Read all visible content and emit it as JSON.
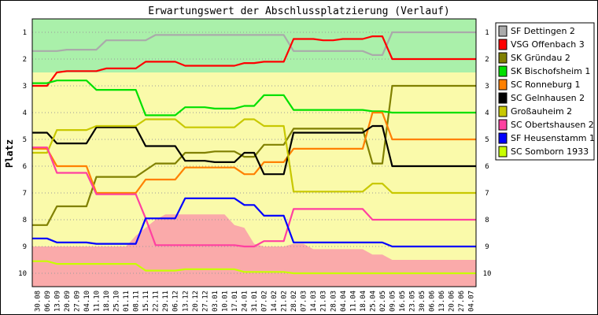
{
  "chart_data": {
    "type": "line",
    "title": "Erwartungswert der Abschlussplatzierung (Verlauf)",
    "ylabel": "Platz",
    "xlabel": "",
    "ylim": [
      10.5,
      0.5
    ],
    "y_ticks": [
      "1",
      "2",
      "3",
      "4",
      "5",
      "6",
      "7",
      "8",
      "9",
      "10"
    ],
    "x": [
      "30.08",
      "06.09",
      "13.09",
      "20.09",
      "27.09",
      "04.10",
      "11.10",
      "18.10",
      "25.10",
      "01.11",
      "08.11",
      "15.11",
      "22.11",
      "29.11",
      "06.12",
      "13.12",
      "20.12",
      "27.12",
      "03.01",
      "10.01",
      "17.01",
      "24.01",
      "31.01",
      "07.02",
      "14.02",
      "21.02",
      "28.02",
      "07.03",
      "14.03",
      "21.03",
      "28.03",
      "04.04",
      "11.04",
      "18.04",
      "25.04",
      "02.05",
      "09.05",
      "16.05",
      "23.05",
      "30.05",
      "06.06",
      "13.06",
      "20.06",
      "27.06",
      "04.07"
    ],
    "zones": [
      {
        "from": 0.5,
        "to": 2.5,
        "color": "#aaf0aa"
      },
      {
        "from": 2.5,
        "to": 9.5,
        "color": "#fafaaa"
      },
      {
        "from": 9.5,
        "to": 10.5,
        "color": "#faaaaa"
      }
    ],
    "shaded_area": {
      "color": "#faaaaa",
      "upper": [
        9.0,
        9.0,
        9.0,
        9.0,
        9.0,
        9.0,
        9.0,
        9.0,
        9.0,
        9.0,
        8.6,
        8.3,
        8.0,
        7.8,
        7.8,
        7.8,
        7.8,
        7.8,
        7.8,
        7.8,
        8.2,
        8.3,
        8.9,
        9.0,
        9.0,
        9.0,
        8.9,
        8.9,
        9.1,
        9.1,
        9.1,
        9.1,
        9.1,
        9.1,
        9.3,
        9.3,
        9.5,
        9.5,
        9.5,
        9.5,
        9.5,
        9.5,
        9.5,
        9.5,
        9.5
      ]
    },
    "series": [
      {
        "name": "SF Dettingen 2",
        "color": "#aaaaaa",
        "values": [
          1.7,
          1.7,
          1.7,
          1.65,
          1.65,
          1.65,
          1.65,
          1.3,
          1.3,
          1.3,
          1.3,
          1.3,
          1.1,
          1.1,
          1.1,
          1.1,
          1.1,
          1.1,
          1.1,
          1.1,
          1.1,
          1.1,
          1.1,
          1.1,
          1.1,
          1.1,
          1.7,
          1.7,
          1.7,
          1.7,
          1.7,
          1.7,
          1.7,
          1.7,
          1.85,
          1.85,
          1.0,
          1.0,
          1.0,
          1.0,
          1.0,
          1.0,
          1.0,
          1.0,
          1.0
        ]
      },
      {
        "name": "VSG Offenbach 3",
        "color": "#ff0000",
        "values": [
          3.0,
          3.0,
          2.5,
          2.45,
          2.45,
          2.45,
          2.45,
          2.35,
          2.35,
          2.35,
          2.35,
          2.1,
          2.1,
          2.1,
          2.1,
          2.25,
          2.25,
          2.25,
          2.25,
          2.25,
          2.25,
          2.15,
          2.15,
          2.1,
          2.1,
          2.1,
          1.25,
          1.25,
          1.25,
          1.3,
          1.3,
          1.25,
          1.25,
          1.25,
          1.15,
          1.15,
          2.0,
          2.0,
          2.0,
          2.0,
          2.0,
          2.0,
          2.0,
          2.0,
          2.0
        ]
      },
      {
        "name": "SK Gründau 2",
        "color": "#808000",
        "values": [
          8.2,
          8.2,
          7.5,
          7.5,
          7.5,
          7.5,
          6.4,
          6.4,
          6.4,
          6.4,
          6.4,
          6.15,
          5.9,
          5.9,
          5.9,
          5.5,
          5.5,
          5.5,
          5.45,
          5.45,
          5.45,
          5.65,
          5.65,
          5.2,
          5.2,
          5.2,
          4.6,
          4.6,
          4.6,
          4.6,
          4.6,
          4.6,
          4.6,
          4.6,
          5.9,
          5.9,
          3.0,
          3.0,
          3.0,
          3.0,
          3.0,
          3.0,
          3.0,
          3.0,
          3.0
        ]
      },
      {
        "name": "SK Bischofsheim 1",
        "color": "#00e000",
        "values": [
          2.9,
          2.9,
          2.8,
          2.8,
          2.8,
          2.8,
          3.15,
          3.15,
          3.15,
          3.15,
          3.15,
          4.1,
          4.1,
          4.1,
          4.1,
          3.8,
          3.8,
          3.8,
          3.85,
          3.85,
          3.85,
          3.75,
          3.75,
          3.35,
          3.35,
          3.35,
          3.9,
          3.9,
          3.9,
          3.9,
          3.9,
          3.9,
          3.9,
          3.9,
          3.95,
          3.95,
          4.0,
          4.0,
          4.0,
          4.0,
          4.0,
          4.0,
          4.0,
          4.0,
          4.0
        ]
      },
      {
        "name": "SC Ronneburg 1",
        "color": "#ff8000",
        "values": [
          5.35,
          5.35,
          6.0,
          6.0,
          6.0,
          6.0,
          7.0,
          7.0,
          7.0,
          7.0,
          7.0,
          6.5,
          6.5,
          6.5,
          6.5,
          6.05,
          6.05,
          6.05,
          6.05,
          6.05,
          6.05,
          6.3,
          6.3,
          5.85,
          5.85,
          5.85,
          5.35,
          5.35,
          5.35,
          5.35,
          5.35,
          5.35,
          5.35,
          5.35,
          4.0,
          4.0,
          5.0,
          5.0,
          5.0,
          5.0,
          5.0,
          5.0,
          5.0,
          5.0,
          5.0
        ]
      },
      {
        "name": "SC Gelnhausen 2",
        "color": "#000000",
        "values": [
          4.75,
          4.75,
          5.15,
          5.15,
          5.15,
          5.15,
          4.55,
          4.55,
          4.55,
          4.55,
          4.55,
          5.25,
          5.25,
          5.25,
          5.25,
          5.8,
          5.8,
          5.8,
          5.85,
          5.85,
          5.85,
          5.5,
          5.5,
          6.3,
          6.3,
          6.3,
          4.75,
          4.75,
          4.75,
          4.75,
          4.75,
          4.75,
          4.75,
          4.75,
          4.5,
          4.5,
          6.0,
          6.0,
          6.0,
          6.0,
          6.0,
          6.0,
          6.0,
          6.0,
          6.0
        ]
      },
      {
        "name": "Großauheim 2",
        "color": "#c8c800",
        "values": [
          5.5,
          5.5,
          4.65,
          4.65,
          4.65,
          4.65,
          4.5,
          4.5,
          4.5,
          4.5,
          4.5,
          4.25,
          4.25,
          4.25,
          4.25,
          4.55,
          4.55,
          4.55,
          4.55,
          4.55,
          4.55,
          4.25,
          4.25,
          4.5,
          4.5,
          4.5,
          6.95,
          6.95,
          6.95,
          6.95,
          6.95,
          6.95,
          6.95,
          6.95,
          6.65,
          6.65,
          7.0,
          7.0,
          7.0,
          7.0,
          7.0,
          7.0,
          7.0,
          7.0,
          7.0
        ]
      },
      {
        "name": "SC Obertshausen 2",
        "color": "#ff40a0",
        "values": [
          5.3,
          5.3,
          6.25,
          6.25,
          6.25,
          6.25,
          7.05,
          7.05,
          7.05,
          7.05,
          7.05,
          7.95,
          8.95,
          8.95,
          8.95,
          8.95,
          8.95,
          8.95,
          8.95,
          8.95,
          8.95,
          9.0,
          9.0,
          8.8,
          8.8,
          8.8,
          7.6,
          7.6,
          7.6,
          7.6,
          7.6,
          7.6,
          7.6,
          7.6,
          8.0,
          8.0,
          8.0,
          8.0,
          8.0,
          8.0,
          8.0,
          8.0,
          8.0,
          8.0,
          8.0
        ]
      },
      {
        "name": "SF Heusenstamm 1",
        "color": "#0000ff",
        "values": [
          8.7,
          8.7,
          8.85,
          8.85,
          8.85,
          8.85,
          8.9,
          8.9,
          8.9,
          8.9,
          8.9,
          7.95,
          7.95,
          7.95,
          7.95,
          7.2,
          7.2,
          7.2,
          7.2,
          7.2,
          7.2,
          7.45,
          7.45,
          7.85,
          7.85,
          7.85,
          8.85,
          8.85,
          8.85,
          8.85,
          8.85,
          8.85,
          8.85,
          8.85,
          8.85,
          8.85,
          9.0,
          9.0,
          9.0,
          9.0,
          9.0,
          9.0,
          9.0,
          9.0,
          9.0
        ]
      },
      {
        "name": "SC Somborn 1933",
        "color": "#c8ff00",
        "values": [
          9.55,
          9.55,
          9.65,
          9.65,
          9.65,
          9.65,
          9.65,
          9.65,
          9.65,
          9.65,
          9.65,
          9.9,
          9.9,
          9.9,
          9.9,
          9.85,
          9.85,
          9.85,
          9.85,
          9.85,
          9.85,
          9.95,
          9.95,
          9.95,
          9.95,
          9.95,
          10.0,
          10.0,
          10.0,
          10.0,
          10.0,
          10.0,
          10.0,
          10.0,
          10.0,
          10.0,
          10.0,
          10.0,
          10.0,
          10.0,
          10.0,
          10.0,
          10.0,
          10.0,
          10.0
        ]
      }
    ]
  }
}
